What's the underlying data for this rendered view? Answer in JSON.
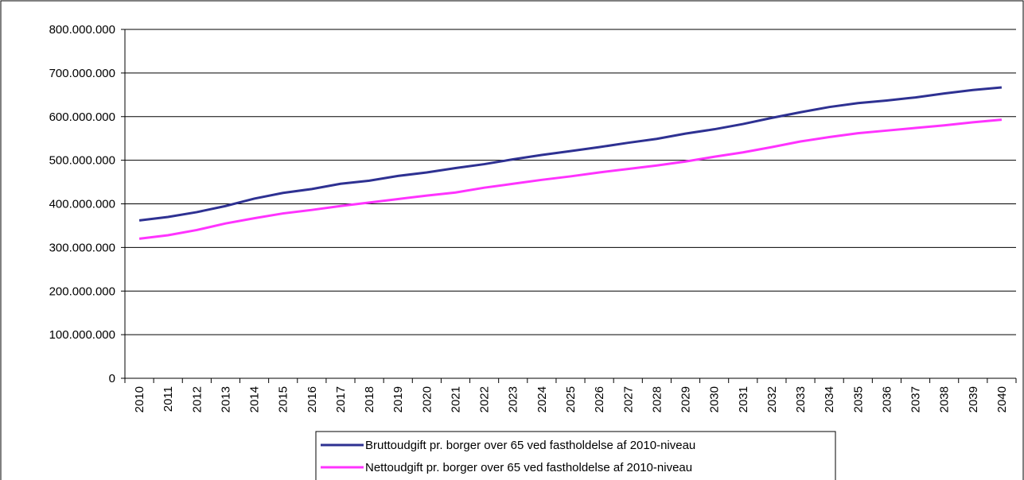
{
  "chart_data": {
    "type": "line",
    "categories": [
      "2010",
      "2011",
      "2012",
      "2013",
      "2014",
      "2015",
      "2016",
      "2017",
      "2018",
      "2019",
      "2020",
      "2021",
      "2022",
      "2023",
      "2024",
      "2025",
      "2026",
      "2027",
      "2028",
      "2029",
      "2030",
      "2031",
      "2032",
      "2033",
      "2034",
      "2035",
      "2036",
      "2037",
      "2038",
      "2039",
      "2040"
    ],
    "series": [
      {
        "name": "Bruttoudgift pr. borger over 65 ved fastholdelse af 2010-niveau",
        "color": "#2e3192",
        "values": [
          362000000,
          370000000,
          381000000,
          395000000,
          412000000,
          425000000,
          434000000,
          446000000,
          453000000,
          464000000,
          472000000,
          482000000,
          491000000,
          502000000,
          512000000,
          521000000,
          530000000,
          540000000,
          549000000,
          561000000,
          571000000,
          583000000,
          597000000,
          610000000,
          622000000,
          631000000,
          637000000,
          644000000,
          653000000,
          661000000,
          667000000
        ]
      },
      {
        "name": "Nettoudgift pr. borger over 65 ved fastholdelse af 2010-niveau",
        "color": "#ff33ff",
        "values": [
          320000000,
          328000000,
          340000000,
          355000000,
          367000000,
          378000000,
          386000000,
          395000000,
          403000000,
          411000000,
          419000000,
          426000000,
          437000000,
          446000000,
          455000000,
          463000000,
          472000000,
          480000000,
          488000000,
          497000000,
          508000000,
          518000000,
          530000000,
          543000000,
          553000000,
          562000000,
          568000000,
          574000000,
          580000000,
          587000000,
          593000000
        ]
      }
    ],
    "ylim": [
      0,
      800000000
    ],
    "yticks": [
      0,
      {
        "value": 100000000,
        "label": "100.000.000"
      },
      {
        "value": 200000000,
        "label": "200.000.000"
      },
      {
        "value": 300000000,
        "label": "300.000.000"
      },
      {
        "value": 400000000,
        "label": "400.000.000"
      },
      {
        "value": 500000000,
        "label": "500.000.000"
      },
      {
        "value": 600000000,
        "label": "600.000.000"
      },
      {
        "value": 700000000,
        "label": "700.000.000"
      },
      {
        "value": 800000000,
        "label": "800.000.000"
      }
    ],
    "grid": true
  }
}
